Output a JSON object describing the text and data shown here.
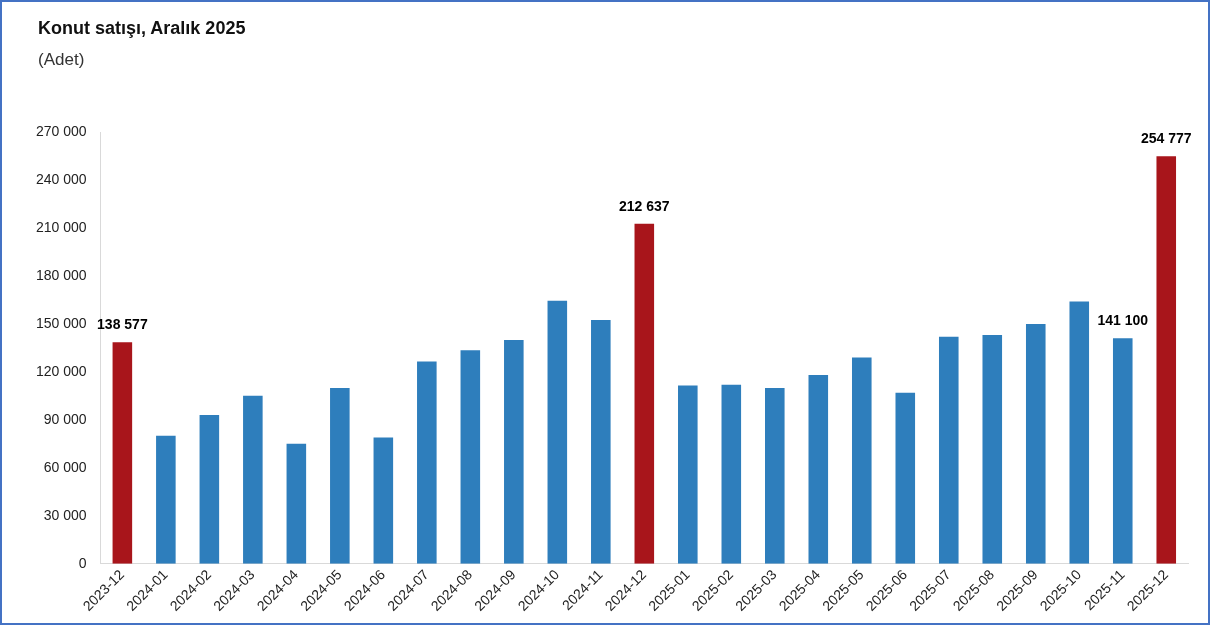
{
  "chart_data": {
    "type": "bar",
    "title": "Konut satışı, Aralık 2025",
    "subtitle": "(Adet)",
    "categories": [
      "2023-12",
      "2024-01",
      "2024-02",
      "2024-03",
      "2024-04",
      "2024-05",
      "2024-06",
      "2024-07",
      "2024-08",
      "2024-09",
      "2024-10",
      "2024-11",
      "2024-12",
      "2025-01",
      "2025-02",
      "2025-03",
      "2025-04",
      "2025-05",
      "2025-06",
      "2025-07",
      "2025-08",
      "2025-09",
      "2025-10",
      "2025-11",
      "2025-12"
    ],
    "values": [
      138577,
      80000,
      93000,
      105000,
      75000,
      110000,
      79000,
      126500,
      133500,
      140000,
      164500,
      152500,
      212637,
      111500,
      112000,
      110000,
      118000,
      129000,
      107000,
      142000,
      143000,
      150000,
      164000,
      141100,
      254777
    ],
    "colors": [
      "#a8151b",
      "#2e7ebc",
      "#2e7ebc",
      "#2e7ebc",
      "#2e7ebc",
      "#2e7ebc",
      "#2e7ebc",
      "#2e7ebc",
      "#2e7ebc",
      "#2e7ebc",
      "#2e7ebc",
      "#2e7ebc",
      "#a8151b",
      "#2e7ebc",
      "#2e7ebc",
      "#2e7ebc",
      "#2e7ebc",
      "#2e7ebc",
      "#2e7ebc",
      "#2e7ebc",
      "#2e7ebc",
      "#2e7ebc",
      "#2e7ebc",
      "#2e7ebc",
      "#a8151b"
    ],
    "value_labels": [
      "138 577",
      null,
      null,
      null,
      null,
      null,
      null,
      null,
      null,
      null,
      null,
      null,
      "212 637",
      null,
      null,
      null,
      null,
      null,
      null,
      null,
      null,
      null,
      null,
      "141 100",
      "254 777"
    ],
    "ylim": [
      0,
      270000
    ],
    "yticks": [
      {
        "value": 0,
        "label": "0"
      },
      {
        "value": 30000,
        "label": "30 000"
      },
      {
        "value": 60000,
        "label": "60 000"
      },
      {
        "value": 90000,
        "label": "90 000"
      },
      {
        "value": 120000,
        "label": "120 000"
      },
      {
        "value": 150000,
        "label": "150 000"
      },
      {
        "value": 180000,
        "label": "180 000"
      },
      {
        "value": 210000,
        "label": "210 000"
      },
      {
        "value": 240000,
        "label": "240 000"
      },
      {
        "value": 270000,
        "label": "270 000"
      }
    ],
    "grid": false,
    "legend": false
  }
}
